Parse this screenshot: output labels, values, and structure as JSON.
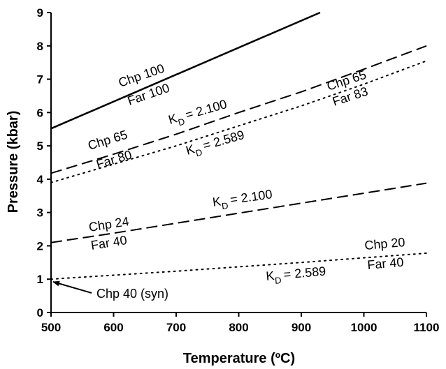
{
  "chart_data": {
    "type": "line",
    "xlabel": "Temperature (ºC)",
    "ylabel": "Pressure (kbar)",
    "xlim": [
      500,
      1100
    ],
    "ylim": [
      0,
      9
    ],
    "xticks": [
      500,
      600,
      700,
      800,
      900,
      1000,
      1100
    ],
    "yticks": [
      0,
      1,
      2,
      3,
      4,
      5,
      6,
      7,
      8,
      9
    ],
    "grid": false,
    "legend": "none",
    "series": [
      {
        "style": "solid",
        "points": [
          [
            500,
            5.52
          ],
          [
            930,
            9.0
          ]
        ]
      },
      {
        "style": "dashed",
        "points": [
          [
            500,
            4.18
          ],
          [
            600,
            4.75
          ],
          [
            700,
            5.35
          ],
          [
            800,
            6.0
          ],
          [
            900,
            6.62
          ],
          [
            1000,
            7.3
          ],
          [
            1100,
            8.0
          ]
        ]
      },
      {
        "style": "dotted",
        "points": [
          [
            500,
            3.9
          ],
          [
            600,
            4.45
          ],
          [
            700,
            5.0
          ],
          [
            800,
            5.6
          ],
          [
            900,
            6.2
          ],
          [
            1000,
            6.85
          ],
          [
            1100,
            7.55
          ]
        ]
      },
      {
        "style": "dashed",
        "points": [
          [
            500,
            2.1
          ],
          [
            600,
            2.38
          ],
          [
            700,
            2.68
          ],
          [
            800,
            2.98
          ],
          [
            900,
            3.28
          ],
          [
            1000,
            3.58
          ],
          [
            1100,
            3.88
          ]
        ]
      },
      {
        "style": "dotted",
        "points": [
          [
            500,
            1.0
          ],
          [
            600,
            1.12
          ],
          [
            700,
            1.24
          ],
          [
            800,
            1.37
          ],
          [
            900,
            1.5
          ],
          [
            1000,
            1.64
          ],
          [
            1100,
            1.78
          ]
        ]
      }
    ],
    "annotations": {
      "chp100": "Chp 100",
      "far100": "Far 100",
      "chp65_left": "Chp 65",
      "far80": "Far 80",
      "kd_upper_dashed": "= 2.100",
      "kd_upper_dotted": "= 2.589",
      "chp65_right": "Chp 65",
      "far83": "Far 83",
      "chp24": "Chp 24",
      "far40_mid": "Far 40",
      "kd_lower_dashed": "= 2.100",
      "chp20": "Chp 20",
      "far40_right": "Far 40",
      "kd_lower_dotted": "= 2.589",
      "chp40_syn": "Chp 40 (syn)",
      "kd_symbol": "K",
      "kd_subscript": "D"
    }
  }
}
